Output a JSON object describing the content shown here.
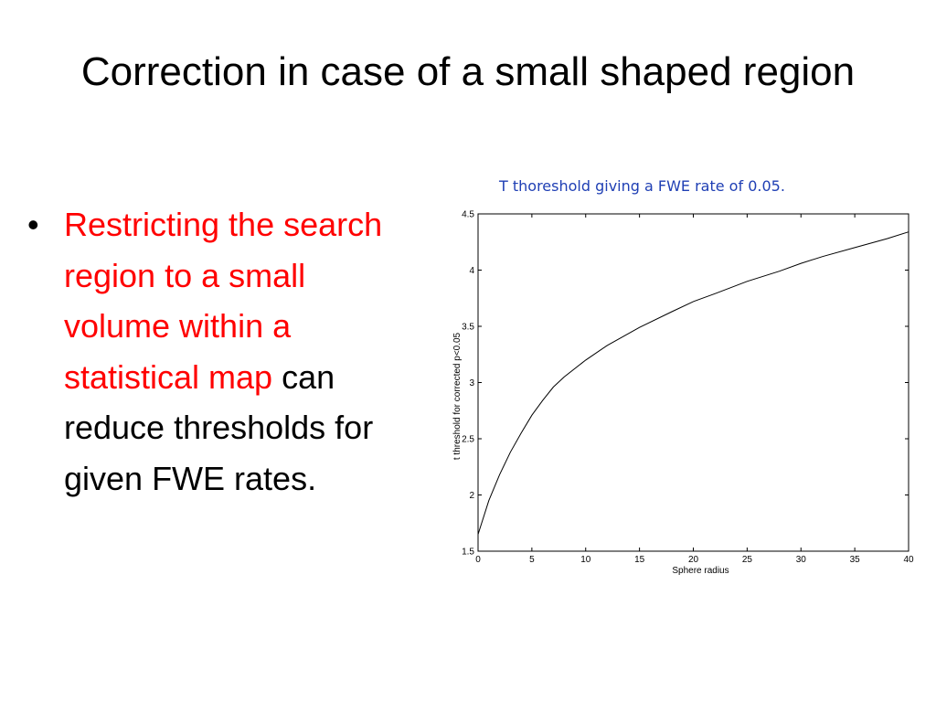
{
  "slide": {
    "title": "Correction in case of a small shaped region",
    "bullet": {
      "marker": "•",
      "highlight_text": "Restricting the search region to a small volume within a statistical map",
      "rest_text": " can reduce thresholds for given FWE rates.",
      "highlight_color": "#ff0000"
    },
    "chart_caption": "T thoreshold giving a FWE rate of 0.05.",
    "caption_color": "#1f3fb4"
  },
  "chart_data": {
    "type": "line",
    "title": "",
    "xlabel": "Sphere radius",
    "ylabel": "t threshold for corrected p<0.05",
    "xlim": [
      0,
      40
    ],
    "ylim": [
      1.5,
      4.5
    ],
    "xticks": [
      "0",
      "5",
      "10",
      "15",
      "20",
      "25",
      "30",
      "35",
      "40"
    ],
    "yticks": [
      "1.5",
      "2",
      "2.5",
      "3",
      "3.5",
      "4",
      "4.5"
    ],
    "grid": false,
    "series": [
      {
        "x": [
          0,
          1,
          2,
          3,
          4,
          5,
          6,
          7,
          8,
          10,
          12,
          15,
          18,
          20,
          22,
          25,
          28,
          30,
          32,
          35,
          38,
          40
        ],
        "values": [
          1.65,
          1.95,
          2.18,
          2.38,
          2.55,
          2.71,
          2.84,
          2.96,
          3.05,
          3.2,
          3.33,
          3.49,
          3.63,
          3.72,
          3.79,
          3.9,
          3.99,
          4.06,
          4.12,
          4.2,
          4.28,
          4.34
        ]
      }
    ]
  }
}
